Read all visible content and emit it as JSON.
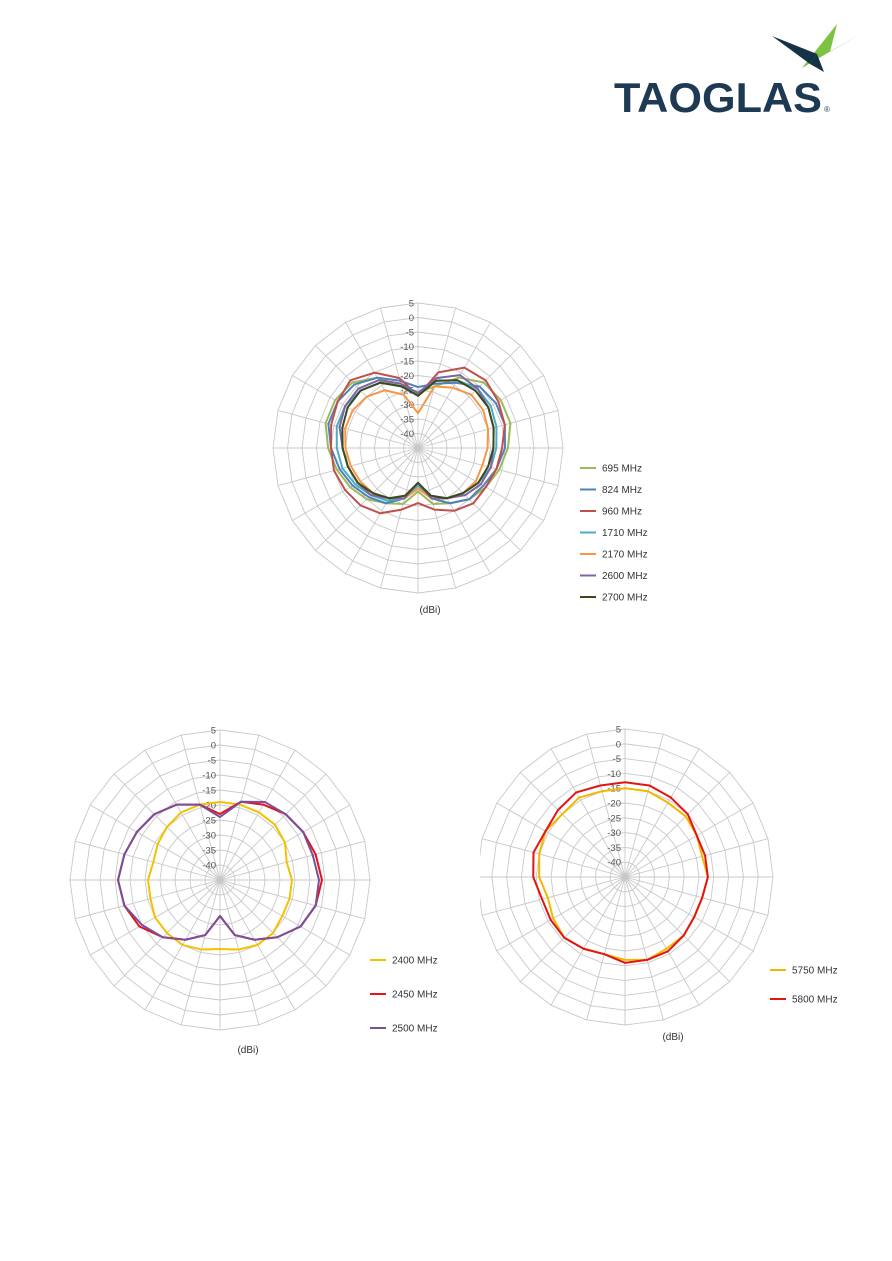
{
  "logo": {
    "text": "TAOGLAS",
    "reg": "®",
    "colors": {
      "text": "#1d3a52",
      "accent": "#7dc242",
      "dark": "#163247"
    }
  },
  "chart_data": [
    {
      "type": "radar",
      "title": "",
      "unit_label": "(dBi)",
      "r_ticks": [
        "5",
        "0",
        "-5",
        "-10",
        "-15",
        "-20",
        "-25",
        "-30",
        "-35",
        "-40"
      ],
      "r_range": [
        -45,
        5
      ],
      "angles": [
        0,
        15,
        30,
        45,
        60,
        75,
        90,
        105,
        120,
        135,
        150,
        165,
        180,
        195,
        210,
        225,
        240,
        255,
        270,
        285,
        300,
        315,
        330,
        345
      ],
      "legend_position": "right",
      "series": [
        {
          "name": "695 MHz",
          "color": "#9bbb59",
          "values": [
            -26,
            -23,
            -17,
            -13,
            -12,
            -12,
            -14,
            -16,
            -18,
            -20,
            -23,
            -25,
            -30,
            -25,
            -23,
            -20,
            -18,
            -16,
            -14,
            -12,
            -12,
            -13,
            -17,
            -23
          ]
        },
        {
          "name": "824 MHz",
          "color": "#4f81bd",
          "values": [
            -24,
            -22,
            -19,
            -15,
            -14,
            -14,
            -15,
            -17,
            -19,
            -20,
            -23,
            -27,
            -33,
            -27,
            -23,
            -21,
            -19,
            -17,
            -15,
            -13,
            -13,
            -14,
            -17,
            -21
          ]
        },
        {
          "name": "960 MHz",
          "color": "#c0504d",
          "values": [
            -27,
            -18,
            -13,
            -12,
            -13,
            -14,
            -16,
            -17,
            -18,
            -18,
            -20,
            -23,
            -26,
            -23,
            -19,
            -17,
            -16,
            -15,
            -15,
            -14,
            -13,
            -12,
            -15,
            -20
          ]
        },
        {
          "name": "1710 MHz",
          "color": "#4bacc6",
          "values": [
            -26,
            -21,
            -18,
            -16,
            -16,
            -17,
            -18,
            -19,
            -21,
            -23,
            -25,
            -27,
            -32,
            -27,
            -24,
            -22,
            -20,
            -18,
            -17,
            -16,
            -16,
            -17,
            -19,
            -23
          ]
        },
        {
          "name": "2170 MHz",
          "color": "#f79646",
          "values": [
            -33,
            -23,
            -21,
            -19,
            -19,
            -20,
            -21,
            -22,
            -22,
            -23,
            -25,
            -27,
            -31,
            -27,
            -25,
            -23,
            -22,
            -21,
            -20,
            -19,
            -19,
            -20,
            -22,
            -26
          ]
        },
        {
          "name": "2600 MHz",
          "color": "#8064a2",
          "values": [
            -26,
            -20,
            -16,
            -16,
            -17,
            -18,
            -19,
            -19,
            -20,
            -22,
            -25,
            -27,
            -33,
            -27,
            -25,
            -22,
            -21,
            -20,
            -19,
            -17,
            -16,
            -16,
            -18,
            -22
          ]
        },
        {
          "name": "2700 MHz",
          "color": "#3b4a1a",
          "values": [
            -27,
            -21,
            -18,
            -17,
            -17,
            -18,
            -19,
            -20,
            -21,
            -23,
            -25,
            -28,
            -33,
            -28,
            -25,
            -23,
            -21,
            -20,
            -19,
            -18,
            -17,
            -17,
            -19,
            -23
          ]
        }
      ]
    },
    {
      "type": "radar",
      "title": "",
      "unit_label": "(dBi)",
      "r_ticks": [
        "5",
        "0",
        "-5",
        "-10",
        "-15",
        "-20",
        "-25",
        "-30",
        "-35",
        "-40"
      ],
      "r_range": [
        -45,
        5
      ],
      "angles": [
        0,
        15,
        30,
        45,
        60,
        75,
        90,
        105,
        120,
        135,
        150,
        165,
        180,
        195,
        210,
        225,
        240,
        255,
        270,
        285,
        300,
        315,
        330,
        345
      ],
      "legend_position": "right",
      "series": [
        {
          "name": "2400 MHz",
          "color": "#f2c200",
          "values": [
            -19,
            -19,
            -19,
            -19,
            -20,
            -22,
            -21,
            -21,
            -21,
            -20,
            -20,
            -21,
            -22,
            -21,
            -20,
            -20,
            -20,
            -21,
            -21,
            -22,
            -21,
            -20,
            -19,
            -19
          ]
        },
        {
          "name": "2450 MHz",
          "color": "#e3141b",
          "values": [
            -23,
            -18,
            -16,
            -14,
            -13,
            -12,
            -11,
            -12,
            -14,
            -18,
            -22,
            -26,
            -33,
            -26,
            -22,
            -18,
            -14,
            -12,
            -11,
            -12,
            -13,
            -14,
            -16,
            -19
          ]
        },
        {
          "name": "2500 MHz",
          "color": "#7a4f9a",
          "values": [
            -24,
            -18,
            -15,
            -14,
            -13,
            -13,
            -12,
            -12,
            -14,
            -18,
            -22,
            -26,
            -33,
            -26,
            -22,
            -18,
            -15,
            -12,
            -11,
            -12,
            -13,
            -14,
            -16,
            -19
          ]
        }
      ]
    },
    {
      "type": "radar",
      "title": "",
      "unit_label": "(dBi)",
      "r_ticks": [
        "5",
        "0",
        "-5",
        "-10",
        "-15",
        "-20",
        "-25",
        "-30",
        "-35",
        "-40"
      ],
      "r_range": [
        -45,
        5
      ],
      "angles": [
        0,
        15,
        30,
        45,
        60,
        75,
        90,
        105,
        120,
        135,
        150,
        165,
        180,
        195,
        210,
        225,
        240,
        255,
        270,
        285,
        300,
        315,
        330,
        345
      ],
      "legend_position": "right",
      "series": [
        {
          "name": "5750 MHz",
          "color": "#f2b800",
          "values": [
            -15,
            -15,
            -16,
            -16,
            -17,
            -18,
            -17,
            -18,
            -18,
            -17,
            -17,
            -16,
            -17,
            -18,
            -17,
            -16,
            -17,
            -18,
            -16,
            -15,
            -14,
            -15,
            -14,
            -15
          ]
        },
        {
          "name": "5800 MHz",
          "color": "#e31414",
          "values": [
            -13,
            -13,
            -14,
            -15,
            -17,
            -17,
            -17,
            -18,
            -18,
            -17,
            -16,
            -16,
            -16,
            -18,
            -17,
            -16,
            -16,
            -16,
            -14,
            -13,
            -14,
            -13,
            -12,
            -13
          ]
        }
      ]
    }
  ]
}
